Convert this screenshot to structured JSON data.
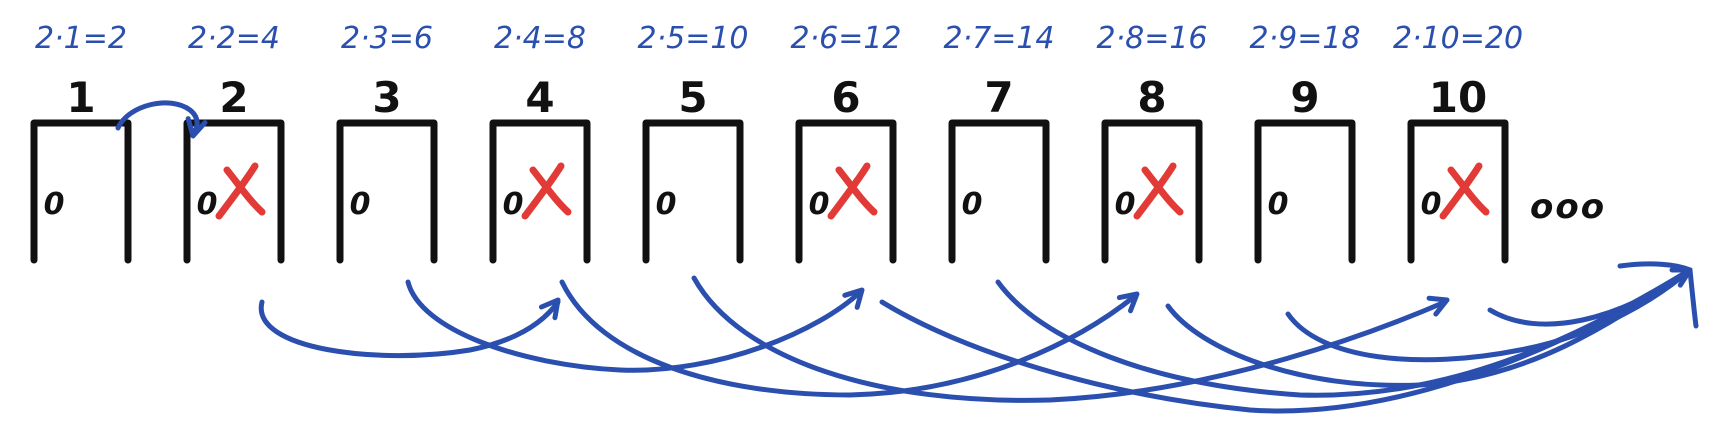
{
  "doors": [
    {
      "number": "1",
      "equation": "2·1=2",
      "state": "0",
      "crossed": false
    },
    {
      "number": "2",
      "equation": "2·2=4",
      "state": "0",
      "crossed": true
    },
    {
      "number": "3",
      "equation": "2·3=6",
      "state": "0",
      "crossed": false
    },
    {
      "number": "4",
      "equation": "2·4=8",
      "state": "0",
      "crossed": true
    },
    {
      "number": "5",
      "equation": "2·5=10",
      "state": "0",
      "crossed": false
    },
    {
      "number": "6",
      "equation": "2·6=12",
      "state": "0",
      "crossed": true
    },
    {
      "number": "7",
      "equation": "2·7=14",
      "state": "0",
      "crossed": false
    },
    {
      "number": "8",
      "equation": "2·8=16",
      "state": "0",
      "crossed": true
    },
    {
      "number": "9",
      "equation": "2·9=18",
      "state": "0",
      "crossed": false
    },
    {
      "number": "10",
      "equation": "2·10=20",
      "state": "0",
      "crossed": true
    }
  ],
  "ellipsis": "ooo",
  "colors": {
    "ink": "#111111",
    "arrow": "#2a4fae",
    "cross": "#e23a36"
  }
}
